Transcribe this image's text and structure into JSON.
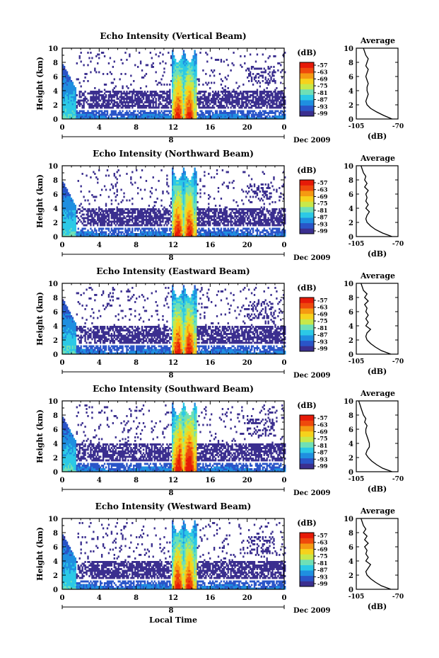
{
  "figure": {
    "x_axis_title": "Local Time",
    "date_label": "Dec 2009",
    "day_tick_label": "8",
    "colors": {
      "colormap": [
        "#3b2f8f",
        "#2a55c8",
        "#1f8fe0",
        "#2cc9e6",
        "#6fe0b6",
        "#c8e84a",
        "#f6d21c",
        "#f59a12",
        "#ef4a0c",
        "#e61a08"
      ]
    }
  },
  "chart_data": [
    {
      "type": "heatmap",
      "title": "Echo Intensity (Vertical Beam)",
      "xlabel": "",
      "ylabel": "Height (km)",
      "xlim": [
        0,
        24
      ],
      "ylim": [
        0,
        10
      ],
      "x_ticks": [
        "0",
        "4",
        "8",
        "12",
        "16",
        "20",
        "0"
      ],
      "y_ticks": [
        "0",
        "2",
        "4",
        "6",
        "8",
        "10"
      ],
      "colorbar": {
        "label": "(dB)",
        "ticks": [
          "-57",
          "-63",
          "-69",
          "-75",
          "-81",
          "-87",
          "-93",
          "-99"
        ]
      },
      "profile": {
        "title": "Average",
        "xlabel": "(dB)",
        "x_ticks": [
          "-105",
          "-70"
        ],
        "y_ticks": [
          "0",
          "2",
          "4",
          "6",
          "8",
          "10"
        ],
        "xlim": [
          -105,
          -70
        ],
        "ylim": [
          0,
          10
        ],
        "x": [
          -75,
          -82,
          -88,
          -93,
          -96,
          -97,
          -96,
          -95,
          -96,
          -96,
          -95,
          -96,
          -97,
          -96,
          -95,
          -97,
          -96,
          -95,
          -97,
          -98,
          -99
        ],
        "y": [
          0,
          0.5,
          1.0,
          1.5,
          2.0,
          2.5,
          3.0,
          3.5,
          4.0,
          4.5,
          5.0,
          5.5,
          6.0,
          6.5,
          7.0,
          7.5,
          8.0,
          8.5,
          9.0,
          9.5,
          10.0
        ]
      }
    },
    {
      "type": "heatmap",
      "title": "Echo Intensity (Northward Beam)",
      "xlabel": "",
      "ylabel": "Height (km)",
      "xlim": [
        0,
        24
      ],
      "ylim": [
        0,
        10
      ],
      "x_ticks": [
        "0",
        "4",
        "8",
        "12",
        "16",
        "20",
        "0"
      ],
      "y_ticks": [
        "0",
        "2",
        "4",
        "6",
        "8",
        "10"
      ],
      "colorbar": {
        "label": "(dB)",
        "ticks": [
          "-57",
          "-63",
          "-69",
          "-75",
          "-81",
          "-87",
          "-93",
          "-99"
        ]
      },
      "profile": {
        "title": "Average",
        "xlabel": "(dB)",
        "x_ticks": [
          "-105",
          "-70"
        ],
        "y_ticks": [
          "0",
          "2",
          "4",
          "6",
          "8",
          "10"
        ],
        "xlim": [
          -105,
          -70
        ],
        "ylim": [
          0,
          10
        ],
        "x": [
          -75,
          -83,
          -89,
          -93,
          -96,
          -97,
          -96,
          -94,
          -97,
          -95,
          -97,
          -96,
          -97,
          -95,
          -98,
          -96,
          -98,
          -97,
          -99,
          -100,
          -101
        ],
        "y": [
          0,
          0.5,
          1.0,
          1.5,
          2.0,
          2.5,
          3.0,
          3.5,
          4.0,
          4.5,
          5.0,
          5.5,
          6.0,
          6.5,
          7.0,
          7.5,
          8.0,
          8.5,
          9.0,
          9.5,
          10.0
        ]
      }
    },
    {
      "type": "heatmap",
      "title": "Echo Intensity (Eastward Beam)",
      "xlabel": "",
      "ylabel": "Height (km)",
      "xlim": [
        0,
        24
      ],
      "ylim": [
        0,
        10
      ],
      "x_ticks": [
        "0",
        "4",
        "8",
        "12",
        "16",
        "20",
        "0"
      ],
      "y_ticks": [
        "0",
        "2",
        "4",
        "6",
        "8",
        "10"
      ],
      "colorbar": {
        "label": "(dB)",
        "ticks": [
          "-57",
          "-63",
          "-69",
          "-75",
          "-81",
          "-87",
          "-93",
          "-99"
        ]
      },
      "profile": {
        "title": "Average",
        "xlabel": "(dB)",
        "x_ticks": [
          "-105",
          "-70"
        ],
        "y_ticks": [
          "0",
          "2",
          "4",
          "6",
          "8",
          "10"
        ],
        "xlim": [
          -105,
          -70
        ],
        "ylim": [
          0,
          10
        ],
        "x": [
          -76,
          -84,
          -89,
          -93,
          -96,
          -97,
          -96,
          -93,
          -97,
          -95,
          -97,
          -95,
          -97,
          -96,
          -98,
          -95,
          -98,
          -96,
          -99,
          -100,
          -101
        ],
        "y": [
          0,
          0.5,
          1.0,
          1.5,
          2.0,
          2.5,
          3.0,
          3.5,
          4.0,
          4.5,
          5.0,
          5.5,
          6.0,
          6.5,
          7.0,
          7.5,
          8.0,
          8.5,
          9.0,
          9.5,
          10.0
        ]
      }
    },
    {
      "type": "heatmap",
      "title": "Echo Intensity (Southward Beam)",
      "xlabel": "",
      "ylabel": "Height (km)",
      "xlim": [
        0,
        24
      ],
      "ylim": [
        0,
        10
      ],
      "x_ticks": [
        "0",
        "4",
        "8",
        "12",
        "16",
        "20",
        "0"
      ],
      "y_ticks": [
        "0",
        "2",
        "4",
        "6",
        "8",
        "10"
      ],
      "colorbar": {
        "label": "(dB)",
        "ticks": [
          "-57",
          "-63",
          "-69",
          "-75",
          "-81",
          "-87",
          "-93",
          "-99"
        ]
      },
      "profile": {
        "title": "Average",
        "xlabel": "(dB)",
        "x_ticks": [
          "-105",
          "-70"
        ],
        "y_ticks": [
          "0",
          "2",
          "4",
          "6",
          "8",
          "10"
        ],
        "xlim": [
          -105,
          -70
        ],
        "ylim": [
          0,
          10
        ],
        "x": [
          -75,
          -83,
          -88,
          -92,
          -95,
          -97,
          -96,
          -94,
          -94,
          -95,
          -96,
          -97,
          -97,
          -96,
          -98,
          -97,
          -99,
          -100,
          -101,
          -102,
          -103
        ],
        "y": [
          0,
          0.5,
          1.0,
          1.5,
          2.0,
          2.5,
          3.0,
          3.5,
          4.0,
          4.5,
          5.0,
          5.5,
          6.0,
          6.5,
          7.0,
          7.5,
          8.0,
          8.5,
          9.0,
          9.5,
          10.0
        ]
      }
    },
    {
      "type": "heatmap",
      "title": "Echo Intensity (Westward Beam)",
      "xlabel": "",
      "ylabel": "Height (km)",
      "xlim": [
        0,
        24
      ],
      "ylim": [
        0,
        10
      ],
      "x_ticks": [
        "0",
        "4",
        "8",
        "12",
        "16",
        "20",
        "0"
      ],
      "y_ticks": [
        "0",
        "2",
        "4",
        "6",
        "8",
        "10"
      ],
      "colorbar": {
        "label": "(dB)",
        "ticks": [
          "-57",
          "-63",
          "-69",
          "-75",
          "-81",
          "-87",
          "-93",
          "-99"
        ]
      },
      "profile": {
        "title": "Average",
        "xlabel": "(dB)",
        "x_ticks": [
          "-105",
          "-70"
        ],
        "y_ticks": [
          "0",
          "2",
          "4",
          "6",
          "8",
          "10"
        ],
        "xlim": [
          -105,
          -70
        ],
        "ylim": [
          0,
          10
        ],
        "x": [
          -76,
          -84,
          -89,
          -93,
          -96,
          -97,
          -95,
          -93,
          -97,
          -95,
          -97,
          -96,
          -98,
          -95,
          -98,
          -96,
          -99,
          -97,
          -99,
          -100,
          -101
        ],
        "y": [
          0,
          0.5,
          1.0,
          1.5,
          2.0,
          2.5,
          3.0,
          3.5,
          4.0,
          4.5,
          5.0,
          5.5,
          6.0,
          6.5,
          7.0,
          7.5,
          8.0,
          8.5,
          9.0,
          9.5,
          10.0
        ]
      }
    }
  ]
}
